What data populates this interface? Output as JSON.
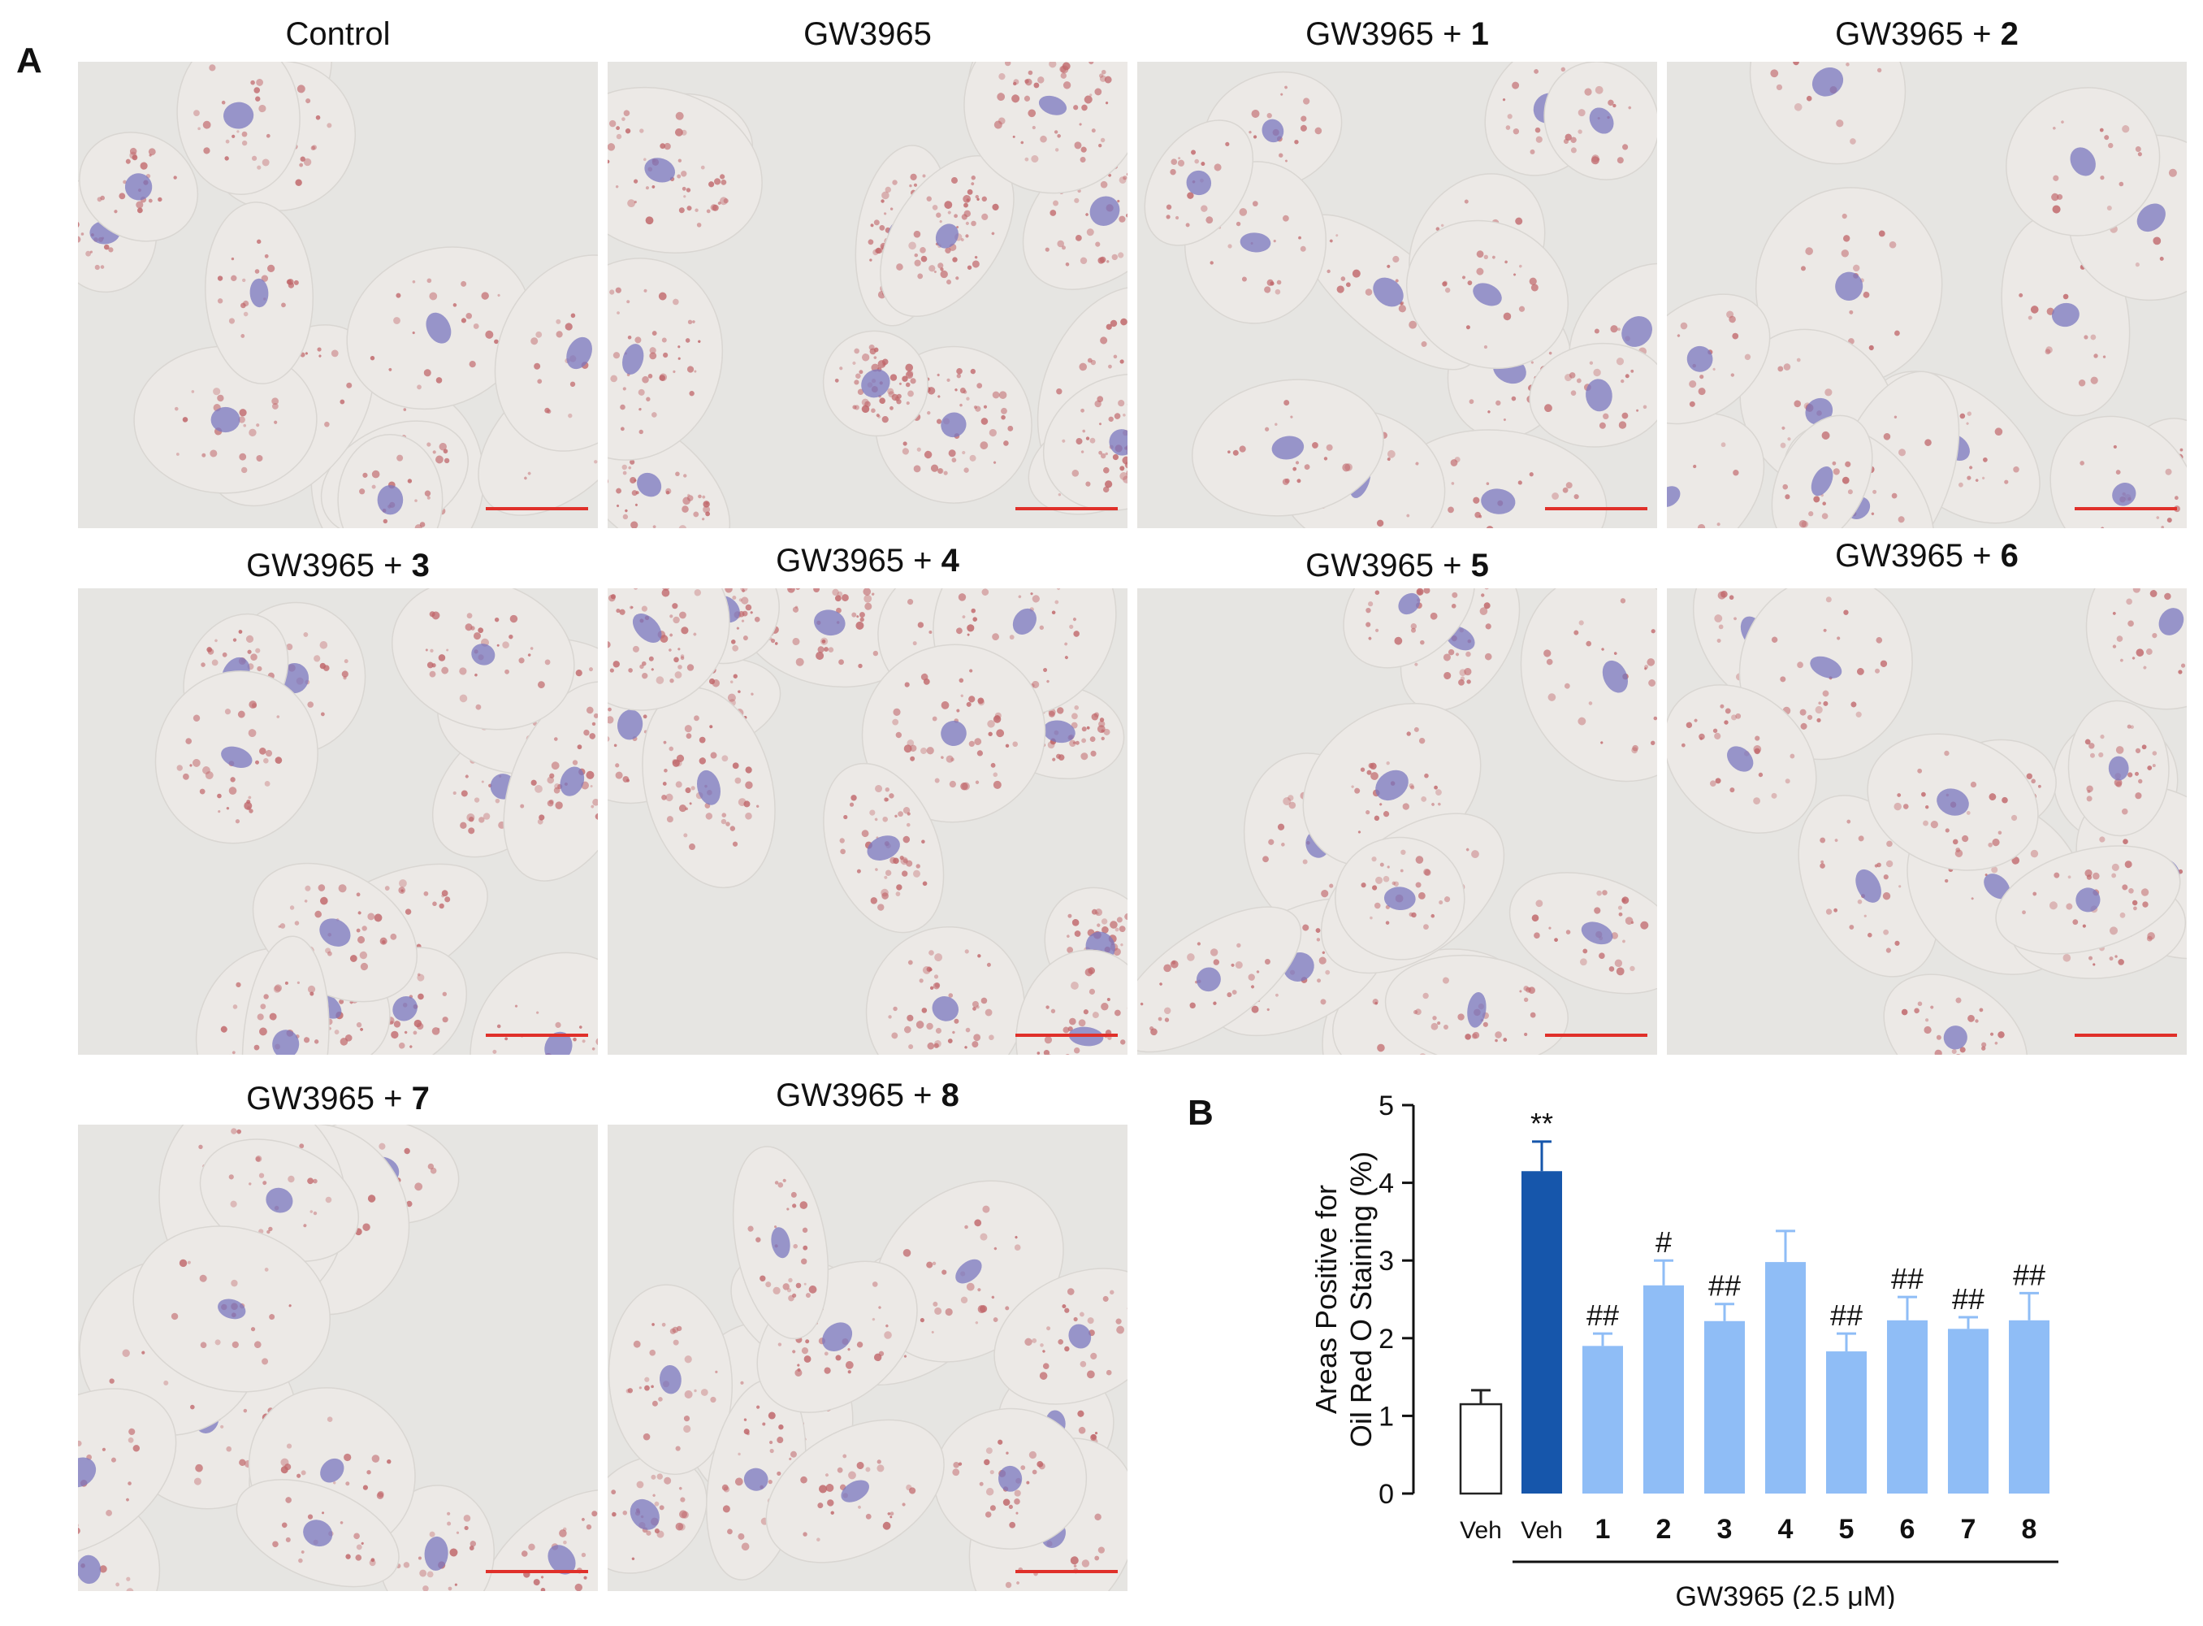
{
  "panel_a_label": "A",
  "panel_b_label": "B",
  "micrograph_prefix": "GW3965 + ",
  "micrographs": [
    {
      "title": "Control",
      "compound": ""
    },
    {
      "title": "GW3965",
      "compound": ""
    },
    {
      "title": "GW3965 + ",
      "compound": "1"
    },
    {
      "title": "GW3965 + ",
      "compound": "2"
    },
    {
      "title": "GW3965 + ",
      "compound": "3"
    },
    {
      "title": "GW3965 + ",
      "compound": "4"
    },
    {
      "title": "GW3965 + ",
      "compound": "5"
    },
    {
      "title": "GW3965 + ",
      "compound": "6"
    },
    {
      "title": "GW3965 + ",
      "compound": "7"
    },
    {
      "title": "GW3965 + ",
      "compound": "8"
    }
  ],
  "micrograph_colors": {
    "background": "#e6e5e2",
    "cell": "#ece9e6",
    "lipid": "#c0666a",
    "nucleus": "#7b77bf",
    "scale_bar": "#e0302a"
  },
  "chart_data": {
    "type": "bar",
    "ylabel_lines": [
      "Areas Positive for",
      "Oil Red O Staining (%)"
    ],
    "ylim": [
      0,
      5
    ],
    "yticks": [
      0,
      1,
      2,
      3,
      4,
      5
    ],
    "categories": [
      "Veh",
      "Veh",
      "1",
      "2",
      "3",
      "4",
      "5",
      "6",
      "7",
      "8"
    ],
    "values": [
      1.15,
      4.15,
      1.9,
      2.68,
      2.22,
      2.98,
      1.83,
      2.23,
      2.12,
      2.23
    ],
    "errors": [
      0.18,
      0.38,
      0.16,
      0.32,
      0.22,
      0.4,
      0.23,
      0.3,
      0.15,
      0.35
    ],
    "annotations": [
      "",
      "**",
      "##",
      "#",
      "##",
      "",
      "##",
      "##",
      "##",
      "##"
    ],
    "colors": [
      "#ffffff",
      "#1656ab",
      "#8fbdf6",
      "#8fbdf6",
      "#8fbdf6",
      "#8fbdf6",
      "#8fbdf6",
      "#8fbdf6",
      "#8fbdf6",
      "#8fbdf6"
    ],
    "group_label": "GW3965 (2.5 μM)"
  }
}
